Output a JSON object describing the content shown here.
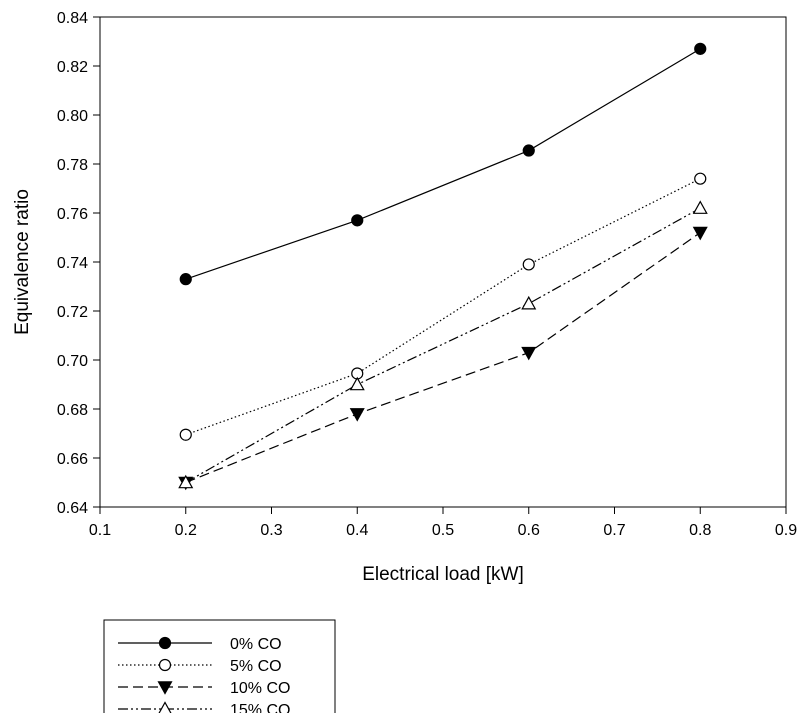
{
  "chart_data": {
    "type": "line",
    "title": "",
    "xlabel": "Electrical load [kW]",
    "ylabel": "Equivalence ratio",
    "xlim": [
      0.1,
      0.9
    ],
    "ylim": [
      0.64,
      0.84
    ],
    "xticks": [
      "0.1",
      "0.2",
      "0.3",
      "0.4",
      "0.5",
      "0.6",
      "0.7",
      "0.8",
      "0.9"
    ],
    "yticks": [
      "0.64",
      "0.66",
      "0.68",
      "0.70",
      "0.72",
      "0.74",
      "0.76",
      "0.78",
      "0.80",
      "0.82",
      "0.84"
    ],
    "grid": false,
    "legend_position": "bottom-left, below chart",
    "x": [
      0.2,
      0.4,
      0.6,
      0.8
    ],
    "series": [
      {
        "name": "0% CO",
        "values": [
          0.733,
          0.757,
          0.7855,
          0.827
        ],
        "marker": "filled-circle",
        "line": "solid"
      },
      {
        "name": "5% CO",
        "values": [
          0.6695,
          0.6945,
          0.739,
          0.774
        ],
        "marker": "open-circle",
        "line": "dotted"
      },
      {
        "name": "10% CO",
        "values": [
          0.65,
          0.678,
          0.703,
          0.752
        ],
        "marker": "filled-triangle-down",
        "line": "dashed"
      },
      {
        "name": "15% CO",
        "values": [
          0.65,
          0.69,
          0.723,
          0.762
        ],
        "marker": "open-triangle-up",
        "line": "dash-dot-dot"
      }
    ]
  }
}
